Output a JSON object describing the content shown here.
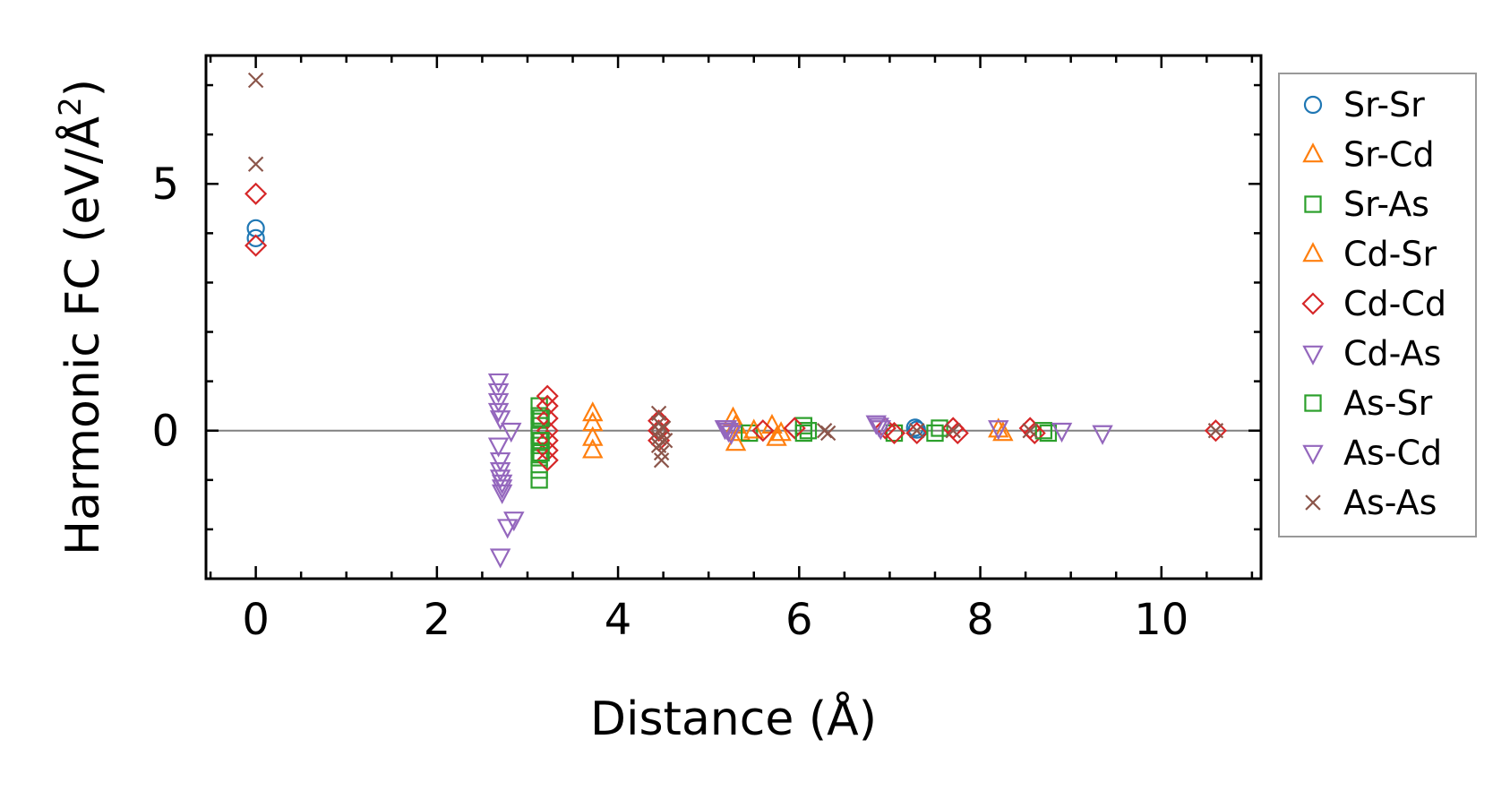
{
  "chart_data": {
    "type": "scatter",
    "title": "",
    "xlabel": "Distance (Å)",
    "ylabel_main": "Harmonic FC (eV/Å",
    "ylabel_sup": "2",
    "ylabel_close": ")",
    "xlim": [
      -0.55,
      11.1
    ],
    "ylim": [
      -3.0,
      7.6
    ],
    "xticks": [
      0,
      2,
      4,
      6,
      8,
      10
    ],
    "xtick_labels": [
      "0",
      "2",
      "4",
      "6",
      "8",
      "10"
    ],
    "yticks": [
      0,
      5
    ],
    "ytick_labels": [
      "0",
      "5"
    ],
    "x_minor_step": 0.5,
    "y_minor_step": 1.0,
    "zero_line": true,
    "legend_position": "right-outside",
    "series": [
      {
        "name": "Sr-Sr",
        "marker": "circle",
        "color": "#1f77b4",
        "points": [
          [
            0,
            4.1
          ],
          [
            0,
            3.9
          ],
          [
            7.28,
            0.06
          ],
          [
            7.3,
            0.02
          ]
        ]
      },
      {
        "name": "Sr-Cd",
        "marker": "triangle-up",
        "color": "#ff7f0e",
        "points": [
          [
            5.27,
            0.25
          ],
          [
            5.3,
            0.1
          ],
          [
            5.35,
            -0.05
          ],
          [
            5.7,
            0.1
          ],
          [
            5.8,
            -0.05
          ],
          [
            8.2,
            0.02
          ]
        ]
      },
      {
        "name": "Sr-As",
        "marker": "square",
        "color": "#2ca02c",
        "points": [
          [
            3.13,
            0.5
          ],
          [
            3.13,
            0.3
          ],
          [
            3.13,
            0.1
          ],
          [
            3.13,
            -0.1
          ],
          [
            3.13,
            -0.3
          ],
          [
            3.13,
            -0.55
          ],
          [
            3.13,
            -0.8
          ],
          [
            3.13,
            -1.0
          ],
          [
            5.45,
            -0.05
          ],
          [
            6.05,
            0.1
          ],
          [
            6.1,
            0.0
          ],
          [
            7.05,
            -0.05
          ],
          [
            7.55,
            0.05
          ],
          [
            8.75,
            -0.05
          ]
        ]
      },
      {
        "name": "Cd-Sr",
        "marker": "triangle-up",
        "color": "#ff7f0e",
        "points": [
          [
            3.72,
            0.35
          ],
          [
            3.72,
            0.15
          ],
          [
            3.72,
            -0.15
          ],
          [
            3.72,
            -0.4
          ],
          [
            5.3,
            -0.25
          ],
          [
            5.5,
            0.0
          ],
          [
            5.75,
            -0.15
          ],
          [
            8.25,
            -0.05
          ]
        ]
      },
      {
        "name": "Cd-Cd",
        "marker": "diamond",
        "color": "#d62728",
        "points": [
          [
            0,
            4.8
          ],
          [
            0,
            3.75
          ],
          [
            3.22,
            0.7
          ],
          [
            3.22,
            0.5
          ],
          [
            3.22,
            0.25
          ],
          [
            3.22,
            0.0
          ],
          [
            3.22,
            -0.2
          ],
          [
            3.22,
            -0.4
          ],
          [
            3.22,
            -0.6
          ],
          [
            4.45,
            0.2
          ],
          [
            4.45,
            0.0
          ],
          [
            4.45,
            -0.2
          ],
          [
            5.6,
            0.0
          ],
          [
            5.95,
            0.05
          ],
          [
            6.95,
            0.05
          ],
          [
            7.05,
            -0.05
          ],
          [
            7.3,
            -0.05
          ],
          [
            7.7,
            0.05
          ],
          [
            7.75,
            -0.05
          ],
          [
            8.55,
            0.05
          ],
          [
            8.6,
            -0.05
          ],
          [
            10.6,
            0.0
          ]
        ]
      },
      {
        "name": "Cd-As",
        "marker": "triangle-down",
        "color": "#9467bd",
        "points": [
          [
            2.68,
            1.0
          ],
          [
            2.68,
            0.8
          ],
          [
            2.68,
            0.6
          ],
          [
            2.68,
            0.4
          ],
          [
            2.7,
            0.25
          ],
          [
            2.68,
            -0.3
          ],
          [
            2.7,
            -0.6
          ],
          [
            2.7,
            -0.8
          ],
          [
            2.7,
            -0.95
          ],
          [
            2.72,
            -1.05
          ],
          [
            2.82,
            0.0
          ],
          [
            5.18,
            0.05
          ],
          [
            5.22,
            0.0
          ],
          [
            5.25,
            -0.05
          ],
          [
            6.85,
            0.15
          ],
          [
            6.9,
            0.05
          ],
          [
            9.35,
            -0.05
          ]
        ]
      },
      {
        "name": "As-Sr",
        "marker": "square",
        "color": "#2ca02c",
        "points": [
          [
            3.15,
            0.25
          ],
          [
            3.15,
            -0.2
          ],
          [
            3.15,
            -0.45
          ],
          [
            6.05,
            -0.05
          ],
          [
            7.5,
            -0.05
          ],
          [
            8.7,
            0.0
          ]
        ]
      },
      {
        "name": "As-Cd",
        "marker": "triangle-down",
        "color": "#9467bd",
        "points": [
          [
            2.72,
            -1.15
          ],
          [
            2.72,
            -1.25
          ],
          [
            2.7,
            -2.55
          ],
          [
            2.78,
            -1.95
          ],
          [
            2.85,
            -1.8
          ],
          [
            5.2,
            0.05
          ],
          [
            6.88,
            0.1
          ],
          [
            8.2,
            0.05
          ],
          [
            8.9,
            0.0
          ]
        ]
      },
      {
        "name": "As-As",
        "marker": "cross",
        "color": "#8c564b",
        "points": [
          [
            0,
            7.1
          ],
          [
            0,
            5.4
          ],
          [
            4.45,
            0.35
          ],
          [
            4.45,
            0.15
          ],
          [
            4.45,
            0.0
          ],
          [
            4.45,
            -0.15
          ],
          [
            4.45,
            -0.3
          ],
          [
            4.48,
            -0.45
          ],
          [
            4.48,
            -0.6
          ],
          [
            4.5,
            0.05
          ],
          [
            4.52,
            -0.2
          ],
          [
            6.28,
            0.0
          ],
          [
            6.32,
            -0.05
          ],
          [
            7.3,
            0.0
          ],
          [
            7.7,
            0.0
          ],
          [
            8.55,
            0.0
          ],
          [
            10.6,
            0.0
          ]
        ]
      }
    ]
  }
}
